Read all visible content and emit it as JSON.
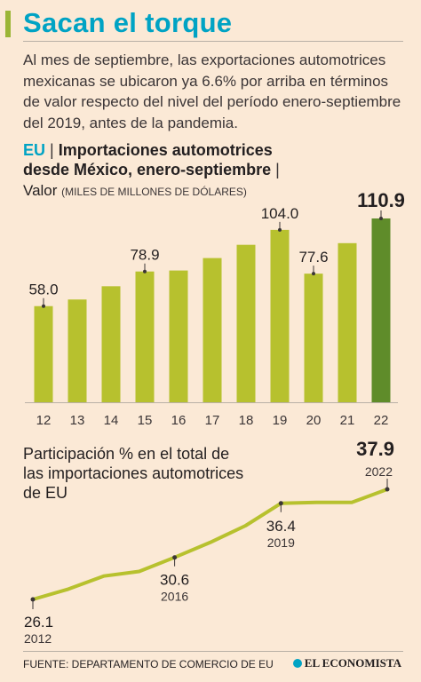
{
  "header": {
    "title": "Sacan el torque",
    "lead": "Al mes de septiembre, las exportaciones automotrices mexicanas se ubicaron ya 6.6% por arriba en términos de valor respecto del nivel del período enero-septiembre del 2019, antes de la pandemia."
  },
  "bar_section": {
    "country": "EU",
    "title_line1": "Importaciones automotrices",
    "title_line2": "desde México, enero-septiembre",
    "value_label": "Valor",
    "unit": "(MILES DE MILLONES DE DÓLARES)"
  },
  "line_section": {
    "title": "Participación % en el total de las importaciones automotrices de EU"
  },
  "footer": {
    "source": "FUENTE: DEPARTAMENTO DE COMERCIO DE EU",
    "brand": "EL ECONOMISTA"
  },
  "colors": {
    "bar": "#b7c12e",
    "bar_highlight": "#5f8c2a",
    "line": "#b7c12e",
    "title": "#00a3c4"
  },
  "chart_data": [
    {
      "type": "bar",
      "categories": [
        "12",
        "13",
        "14",
        "15",
        "16",
        "17",
        "18",
        "19",
        "20",
        "21",
        "22"
      ],
      "values": [
        58.0,
        62.0,
        70.0,
        78.9,
        79.5,
        87.0,
        95.0,
        104.0,
        77.6,
        96.0,
        110.9
      ],
      "labels": [
        "58.0",
        "",
        "",
        "78.9",
        "",
        "",
        "",
        "104.0",
        "77.6",
        "",
        "110.9"
      ],
      "highlight_index": 10,
      "ylim": [
        0,
        115
      ]
    },
    {
      "type": "line",
      "x": [
        2012,
        2013,
        2014,
        2015,
        2016,
        2017,
        2018,
        2019,
        2020,
        2021,
        2022
      ],
      "values": [
        26.1,
        27.2,
        28.6,
        29.1,
        30.6,
        32.2,
        34.0,
        36.4,
        36.5,
        36.5,
        37.9
      ],
      "annotations": [
        {
          "index": 0,
          "value": "26.1",
          "year": "2012"
        },
        {
          "index": 4,
          "value": "30.6",
          "year": "2016"
        },
        {
          "index": 7,
          "value": "36.4",
          "year": "2019"
        },
        {
          "index": 10,
          "value": "37.9",
          "year": "2022"
        }
      ],
      "ylim": [
        25,
        39
      ]
    }
  ]
}
